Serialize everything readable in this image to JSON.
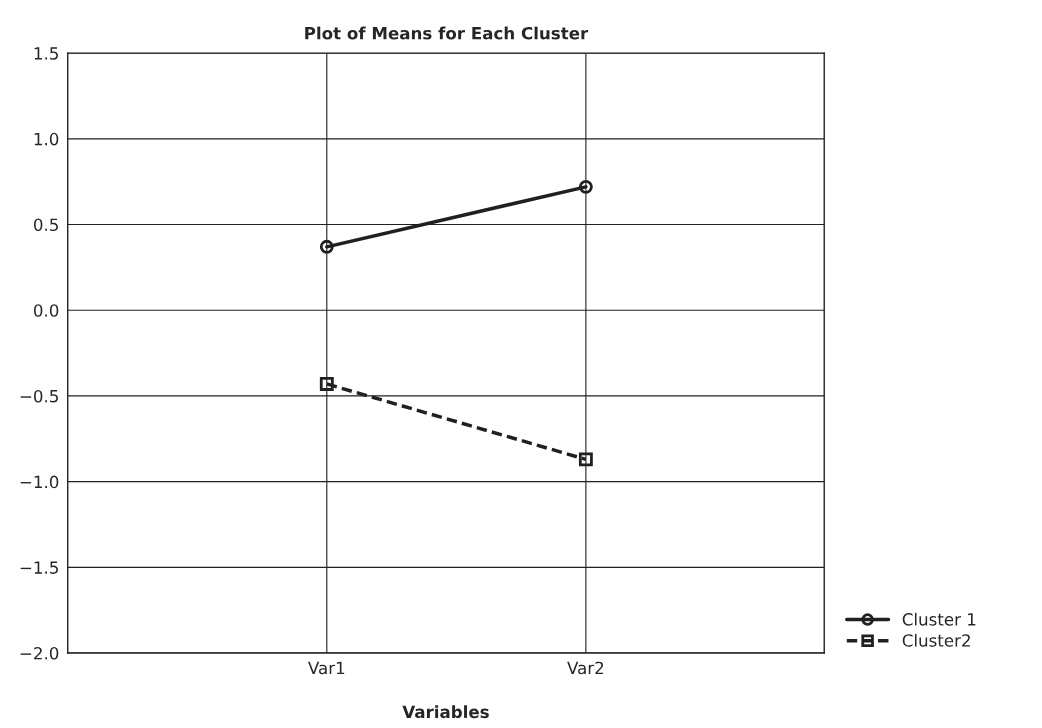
{
  "chart_data": {
    "type": "line",
    "title": "Plot of Means for Each Cluster",
    "xlabel": "Variables",
    "categories": [
      "Var1",
      "Var2"
    ],
    "series": [
      {
        "name": "Cluster 1",
        "color": "#231f20",
        "values": [
          0.37,
          0.72
        ],
        "marker": "circle",
        "line_style": "solid"
      },
      {
        "name": "Cluster2",
        "color": "#231f20",
        "values": [
          -0.43,
          -0.87
        ],
        "marker": "square",
        "line_style": "dashed"
      }
    ],
    "ylim": [
      -2.0,
      1.5
    ],
    "yticks": [
      {
        "value": -2.0,
        "label": "−2.0"
      },
      {
        "value": -1.5,
        "label": "−1.5"
      },
      {
        "value": -1.0,
        "label": "−1.0"
      },
      {
        "value": -0.5,
        "label": "−0.5"
      },
      {
        "value": 0.0,
        "label": "0.0"
      },
      {
        "value": 0.5,
        "label": "0.5"
      },
      {
        "value": 1.0,
        "label": "1.0"
      },
      {
        "value": 1.5,
        "label": "1.5"
      }
    ],
    "grid": true,
    "legend": "bottom right"
  }
}
